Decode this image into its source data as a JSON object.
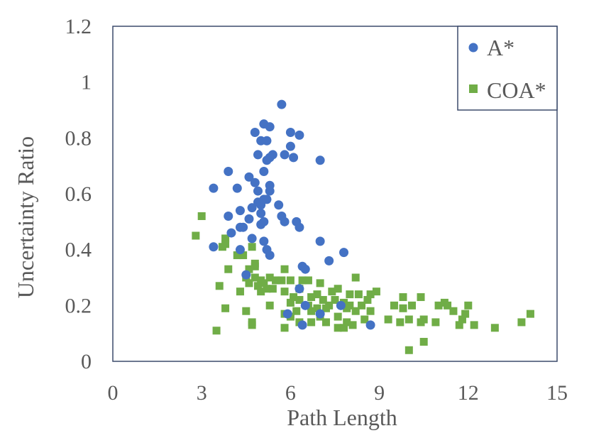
{
  "chart_data": {
    "type": "scatter",
    "title": "",
    "xlabel": "Path Length",
    "ylabel": "Uncertainty Ratio",
    "xlim": [
      0,
      15
    ],
    "ylim": [
      0,
      1.2
    ],
    "xticks": [
      0,
      3,
      6,
      9,
      12,
      15
    ],
    "yticks": [
      0,
      0.2,
      0.4,
      0.6,
      0.8,
      1,
      1.2
    ],
    "xtick_labels": [
      "0",
      "3",
      "6",
      "9",
      "12",
      "15"
    ],
    "ytick_labels": [
      "0",
      "0.2",
      "0.4",
      "0.6",
      "0.8",
      "1",
      "1.2"
    ],
    "grid": false,
    "legend_position": "top-right",
    "series": [
      {
        "name": "A*",
        "marker": "circle",
        "color": "#4472C4",
        "points": [
          [
            5.7,
            0.92
          ],
          [
            5.1,
            0.85
          ],
          [
            5.3,
            0.84
          ],
          [
            4.8,
            0.82
          ],
          [
            6.0,
            0.82
          ],
          [
            6.3,
            0.81
          ],
          [
            5.0,
            0.79
          ],
          [
            5.2,
            0.79
          ],
          [
            6.0,
            0.77
          ],
          [
            4.9,
            0.74
          ],
          [
            5.4,
            0.74
          ],
          [
            5.8,
            0.74
          ],
          [
            5.3,
            0.73
          ],
          [
            6.1,
            0.73
          ],
          [
            5.2,
            0.72
          ],
          [
            7.0,
            0.72
          ],
          [
            3.9,
            0.68
          ],
          [
            5.1,
            0.68
          ],
          [
            4.6,
            0.66
          ],
          [
            4.8,
            0.64
          ],
          [
            5.3,
            0.63
          ],
          [
            3.4,
            0.62
          ],
          [
            4.2,
            0.62
          ],
          [
            5.3,
            0.61
          ],
          [
            4.9,
            0.61
          ],
          [
            5.1,
            0.58
          ],
          [
            5.2,
            0.58
          ],
          [
            4.9,
            0.57
          ],
          [
            5.6,
            0.56
          ],
          [
            5.0,
            0.56
          ],
          [
            4.7,
            0.55
          ],
          [
            4.3,
            0.54
          ],
          [
            5.0,
            0.53
          ],
          [
            5.7,
            0.52
          ],
          [
            3.9,
            0.52
          ],
          [
            4.6,
            0.51
          ],
          [
            6.2,
            0.5
          ],
          [
            5.1,
            0.5
          ],
          [
            5.8,
            0.5
          ],
          [
            5.0,
            0.49
          ],
          [
            4.3,
            0.48
          ],
          [
            4.4,
            0.48
          ],
          [
            6.3,
            0.48
          ],
          [
            4.0,
            0.46
          ],
          [
            4.7,
            0.44
          ],
          [
            5.1,
            0.43
          ],
          [
            7.0,
            0.43
          ],
          [
            3.4,
            0.41
          ],
          [
            4.3,
            0.4
          ],
          [
            5.2,
            0.4
          ],
          [
            7.8,
            0.39
          ],
          [
            5.3,
            0.38
          ],
          [
            7.3,
            0.36
          ],
          [
            6.4,
            0.34
          ],
          [
            6.5,
            0.33
          ],
          [
            4.5,
            0.31
          ],
          [
            6.3,
            0.26
          ],
          [
            6.5,
            0.2
          ],
          [
            5.9,
            0.17
          ],
          [
            7.0,
            0.17
          ],
          [
            7.7,
            0.2
          ],
          [
            6.4,
            0.13
          ],
          [
            8.7,
            0.13
          ]
        ]
      },
      {
        "name": "COA*",
        "marker": "square",
        "color": "#70AD47",
        "points": [
          [
            3.0,
            0.52
          ],
          [
            2.8,
            0.45
          ],
          [
            3.8,
            0.44
          ],
          [
            3.8,
            0.42
          ],
          [
            3.7,
            0.41
          ],
          [
            4.7,
            0.41
          ],
          [
            4.2,
            0.38
          ],
          [
            4.4,
            0.38
          ],
          [
            4.8,
            0.35
          ],
          [
            4.8,
            0.34
          ],
          [
            3.9,
            0.33
          ],
          [
            4.6,
            0.33
          ],
          [
            5.8,
            0.33
          ],
          [
            4.5,
            0.3
          ],
          [
            4.8,
            0.3
          ],
          [
            5.0,
            0.29
          ],
          [
            5.3,
            0.3
          ],
          [
            5.7,
            0.29
          ],
          [
            6.0,
            0.29
          ],
          [
            5.5,
            0.29
          ],
          [
            4.6,
            0.28
          ],
          [
            5.1,
            0.28
          ],
          [
            6.4,
            0.29
          ],
          [
            6.6,
            0.29
          ],
          [
            7.0,
            0.28
          ],
          [
            8.2,
            0.3
          ],
          [
            3.6,
            0.27
          ],
          [
            4.9,
            0.27
          ],
          [
            5.2,
            0.26
          ],
          [
            5.4,
            0.26
          ],
          [
            6.3,
            0.26
          ],
          [
            7.6,
            0.26
          ],
          [
            4.3,
            0.25
          ],
          [
            5.0,
            0.25
          ],
          [
            5.8,
            0.25
          ],
          [
            6.9,
            0.24
          ],
          [
            7.4,
            0.25
          ],
          [
            8.0,
            0.24
          ],
          [
            8.3,
            0.24
          ],
          [
            8.9,
            0.25
          ],
          [
            8.7,
            0.24
          ],
          [
            6.1,
            0.23
          ],
          [
            6.7,
            0.23
          ],
          [
            7.1,
            0.22
          ],
          [
            7.5,
            0.22
          ],
          [
            7.8,
            0.21
          ],
          [
            8.6,
            0.22
          ],
          [
            9.8,
            0.23
          ],
          [
            10.4,
            0.23
          ],
          [
            6.3,
            0.22
          ],
          [
            6.0,
            0.21
          ],
          [
            7.3,
            0.2
          ],
          [
            8.0,
            0.2
          ],
          [
            8.4,
            0.2
          ],
          [
            9.5,
            0.2
          ],
          [
            9.8,
            0.19
          ],
          [
            10.1,
            0.2
          ],
          [
            11.0,
            0.2
          ],
          [
            11.3,
            0.2
          ],
          [
            11.2,
            0.21
          ],
          [
            12.0,
            0.2
          ],
          [
            5.3,
            0.2
          ],
          [
            6.6,
            0.2
          ],
          [
            6.9,
            0.19
          ],
          [
            7.2,
            0.19
          ],
          [
            7.9,
            0.19
          ],
          [
            8.2,
            0.18
          ],
          [
            8.7,
            0.18
          ],
          [
            3.8,
            0.19
          ],
          [
            4.5,
            0.18
          ],
          [
            6.2,
            0.18
          ],
          [
            6.7,
            0.18
          ],
          [
            11.5,
            0.18
          ],
          [
            11.9,
            0.17
          ],
          [
            5.8,
            0.17
          ],
          [
            6.0,
            0.16
          ],
          [
            7.0,
            0.16
          ],
          [
            7.6,
            0.16
          ],
          [
            8.5,
            0.15
          ],
          [
            9.3,
            0.15
          ],
          [
            10.0,
            0.15
          ],
          [
            10.5,
            0.15
          ],
          [
            10.9,
            0.14
          ],
          [
            11.8,
            0.15
          ],
          [
            13.8,
            0.14
          ],
          [
            14.1,
            0.17
          ],
          [
            4.7,
            0.14
          ],
          [
            6.7,
            0.14
          ],
          [
            7.2,
            0.14
          ],
          [
            7.9,
            0.14
          ],
          [
            8.1,
            0.13
          ],
          [
            9.7,
            0.14
          ],
          [
            10.4,
            0.14
          ],
          [
            11.7,
            0.13
          ],
          [
            12.2,
            0.13
          ],
          [
            12.9,
            0.12
          ],
          [
            4.7,
            0.13
          ],
          [
            5.8,
            0.12
          ],
          [
            7.6,
            0.12
          ],
          [
            7.8,
            0.12
          ],
          [
            6.3,
            0.14
          ],
          [
            3.5,
            0.11
          ],
          [
            10.0,
            0.04
          ],
          [
            10.5,
            0.07
          ]
        ]
      }
    ]
  }
}
